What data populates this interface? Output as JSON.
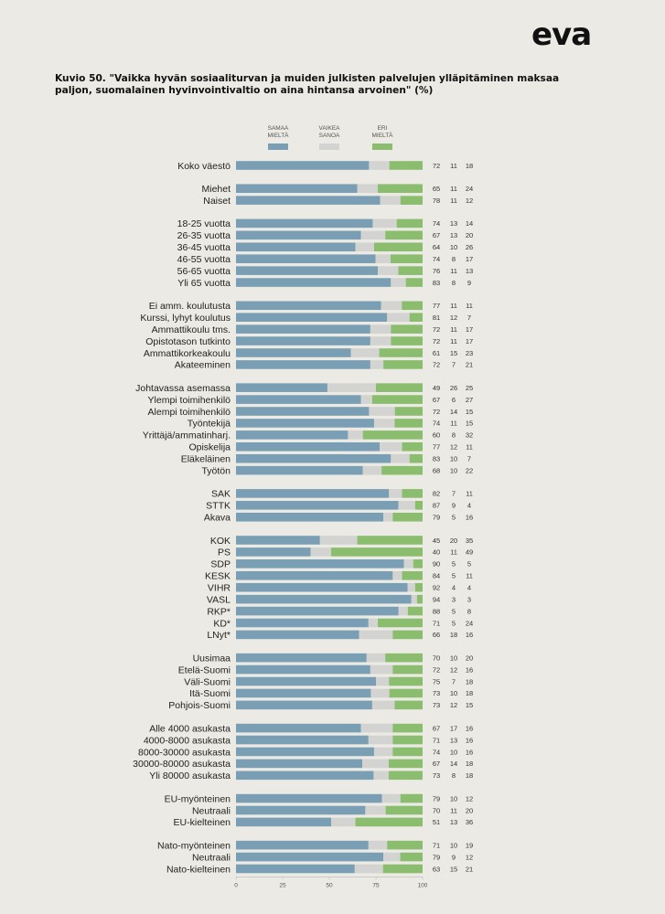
{
  "brand": {
    "logo_text": "eva"
  },
  "header": {
    "title": "Kuvio 50. \"Vaikka hyvän sosiaaliturvan ja muiden julkisten palvelujen ylläpitäminen maksaa paljon, suomalainen hyvinvointivaltio on aina hintansa arvoinen\" (%)"
  },
  "colors": {
    "samaa": "#7a9fb4",
    "vaikea": "#d3d3d1",
    "eri": "#8bbd6e",
    "background": "#eceae4"
  },
  "chart_data": {
    "type": "bar",
    "orientation": "horizontal",
    "stacked": true,
    "title": "Kuvio 50. \"Vaikka hyvän sosiaaliturvan ja muiden julkisten palvelujen ylläpitäminen maksaa paljon, suomalainen hyvinvointivaltio on aina hintansa arvoinen\" (%)",
    "unit": "%",
    "xlim": [
      0,
      100
    ],
    "xticks": [
      0,
      25,
      50,
      75,
      100
    ],
    "legend_position": "top",
    "series_names": [
      [
        "SAMAA",
        "MIELTÄ"
      ],
      [
        "VAIKEA",
        "SANOA"
      ],
      [
        "ERI",
        "MIELTÄ"
      ]
    ],
    "groups": [
      {
        "rows": [
          {
            "label": "Koko väestö",
            "values": [
              72,
              11,
              18
            ]
          }
        ]
      },
      {
        "rows": [
          {
            "label": "Miehet",
            "values": [
              65,
              11,
              24
            ]
          },
          {
            "label": "Naiset",
            "values": [
              78,
              11,
              12
            ]
          }
        ]
      },
      {
        "rows": [
          {
            "label": "18-25 vuotta",
            "values": [
              74,
              13,
              14
            ]
          },
          {
            "label": "26-35 vuotta",
            "values": [
              67,
              13,
              20
            ]
          },
          {
            "label": "36-45 vuotta",
            "values": [
              64,
              10,
              26
            ]
          },
          {
            "label": "46-55 vuotta",
            "values": [
              74,
              8,
              17
            ]
          },
          {
            "label": "56-65 vuotta",
            "values": [
              76,
              11,
              13
            ]
          },
          {
            "label": "Yli 65 vuotta",
            "values": [
              83,
              8,
              9
            ]
          }
        ]
      },
      {
        "rows": [
          {
            "label": "Ei amm. koulutusta",
            "values": [
              77,
              11,
              11
            ]
          },
          {
            "label": "Kurssi, lyhyt koulutus",
            "values": [
              81,
              12,
              7
            ]
          },
          {
            "label": "Ammattikoulu tms.",
            "values": [
              72,
              11,
              17
            ]
          },
          {
            "label": "Opistotason tutkinto",
            "values": [
              72,
              11,
              17
            ]
          },
          {
            "label": "Ammattikorkeakoulu",
            "values": [
              61,
              15,
              23
            ]
          },
          {
            "label": "Akateeminen",
            "values": [
              72,
              7,
              21
            ]
          }
        ]
      },
      {
        "rows": [
          {
            "label": "Johtavassa asemassa",
            "values": [
              49,
              26,
              25
            ]
          },
          {
            "label": "Ylempi toimihenkilö",
            "values": [
              67,
              6,
              27
            ]
          },
          {
            "label": "Alempi toimihenkilö",
            "values": [
              72,
              14,
              15
            ]
          },
          {
            "label": "Työntekijä",
            "values": [
              74,
              11,
              15
            ]
          },
          {
            "label": "Yrittäjä/ammatinharj.",
            "values": [
              60,
              8,
              32
            ]
          },
          {
            "label": "Opiskelija",
            "values": [
              77,
              12,
              11
            ]
          },
          {
            "label": "Eläkeläinen",
            "values": [
              83,
              10,
              7
            ]
          },
          {
            "label": "Työtön",
            "values": [
              68,
              10,
              22
            ]
          }
        ]
      },
      {
        "rows": [
          {
            "label": "SAK",
            "values": [
              82,
              7,
              11
            ]
          },
          {
            "label": "STTK",
            "values": [
              87,
              9,
              4
            ]
          },
          {
            "label": "Akava",
            "values": [
              79,
              5,
              16
            ]
          }
        ]
      },
      {
        "rows": [
          {
            "label": "KOK",
            "values": [
              45,
              20,
              35
            ]
          },
          {
            "label": "PS",
            "values": [
              40,
              11,
              49
            ]
          },
          {
            "label": "SDP",
            "values": [
              90,
              5,
              5
            ]
          },
          {
            "label": "KESK",
            "values": [
              84,
              5,
              11
            ]
          },
          {
            "label": "VIHR",
            "values": [
              92,
              4,
              4
            ]
          },
          {
            "label": "VASL",
            "values": [
              94,
              3,
              3
            ]
          },
          {
            "label": "RKP*",
            "values": [
              88,
              5,
              8
            ]
          },
          {
            "label": "KD*",
            "values": [
              71,
              5,
              24
            ]
          },
          {
            "label": "LNyt*",
            "values": [
              66,
              18,
              16
            ]
          }
        ]
      },
      {
        "rows": [
          {
            "label": "Uusimaa",
            "values": [
              70,
              10,
              20
            ]
          },
          {
            "label": "Etelä-Suomi",
            "values": [
              72,
              12,
              16
            ]
          },
          {
            "label": "Väli-Suomi",
            "values": [
              75,
              7,
              18
            ]
          },
          {
            "label": "Itä-Suomi",
            "values": [
              73,
              10,
              18
            ]
          },
          {
            "label": "Pohjois-Suomi",
            "values": [
              73,
              12,
              15
            ]
          }
        ]
      },
      {
        "rows": [
          {
            "label": "Alle 4000 asukasta",
            "values": [
              67,
              17,
              16
            ]
          },
          {
            "label": "4000-8000 asukasta",
            "values": [
              71,
              13,
              16
            ]
          },
          {
            "label": "8000-30000 asukasta",
            "values": [
              74,
              10,
              16
            ]
          },
          {
            "label": "30000-80000 asukasta",
            "values": [
              67,
              14,
              18
            ]
          },
          {
            "label": "Yli 80000 asukasta",
            "values": [
              73,
              8,
              18
            ]
          }
        ]
      },
      {
        "rows": [
          {
            "label": "EU-myönteinen",
            "values": [
              79,
              10,
              12
            ]
          },
          {
            "label": "Neutraali",
            "values": [
              70,
              11,
              20
            ]
          },
          {
            "label": "EU-kielteinen",
            "values": [
              51,
              13,
              36
            ]
          }
        ]
      },
      {
        "rows": [
          {
            "label": "Nato-myönteinen",
            "values": [
              71,
              10,
              19
            ]
          },
          {
            "label": "Neutraali",
            "values": [
              79,
              9,
              12
            ]
          },
          {
            "label": "Nato-kielteinen",
            "values": [
              63,
              15,
              21
            ]
          }
        ]
      }
    ]
  }
}
